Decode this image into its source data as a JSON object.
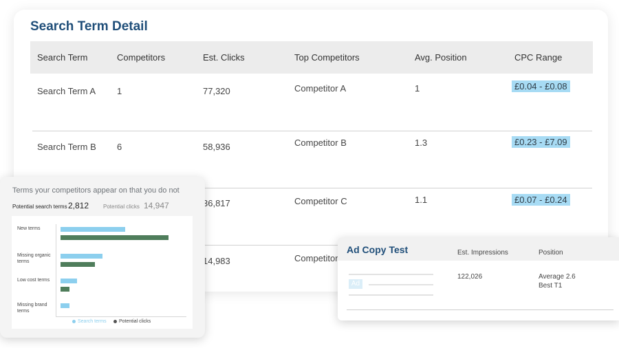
{
  "main": {
    "title": "Search Term Detail",
    "columns": [
      "Search Term",
      "Competitors",
      "Est. Clicks",
      "Top Competitors",
      "Avg. Position",
      "CPC Range"
    ],
    "rows": [
      {
        "term": "Search Term A",
        "competitors": "1",
        "clicks": "77,320",
        "top": "Competitor A",
        "position": "1",
        "cpc": "£0.04 - £0.08"
      },
      {
        "term": "Search Term B",
        "competitors": "6",
        "clicks": "58,936",
        "top": "Competitor B",
        "position": "1.3",
        "cpc": "£0.23 - £7.09"
      },
      {
        "term": "",
        "competitors": "",
        "clicks": "36,817",
        "top": "Competitor C",
        "position": "1.1",
        "cpc": "£0.07 - £0.24"
      },
      {
        "term": "",
        "competitors": "",
        "clicks": "14,983",
        "top": "Competitor",
        "position": "",
        "cpc": ""
      }
    ]
  },
  "chart_card": {
    "title": "Terms your competitors appear on that you do not",
    "stat1_label": "Potential search terms",
    "stat1_value": "2,812",
    "stat2_label": "Potential clicks",
    "stat2_value": "14,947",
    "colors": {
      "search": "#8ccfee",
      "clicks": "#4f7d5b"
    }
  },
  "chart_data": {
    "type": "bar",
    "orientation": "horizontal",
    "categories": [
      "New terms",
      "Missing organic terms",
      "Low cost terms",
      "Missing brand terms"
    ],
    "series": [
      {
        "name": "Search terms",
        "values": [
          0.6,
          0.39,
          0.15,
          0.08
        ]
      },
      {
        "name": "Potential clicks",
        "values": [
          1.0,
          0.32,
          0.08,
          0
        ]
      }
    ],
    "legend": "bottom",
    "grid": false
  },
  "ad_card": {
    "title": "Ad Copy Test",
    "col_impressions": "Est. Impressions",
    "col_position": "Position",
    "impressions": "122,026",
    "position_line1": "Average 2.6",
    "position_line2": "Best T1",
    "badge": "Ad"
  }
}
